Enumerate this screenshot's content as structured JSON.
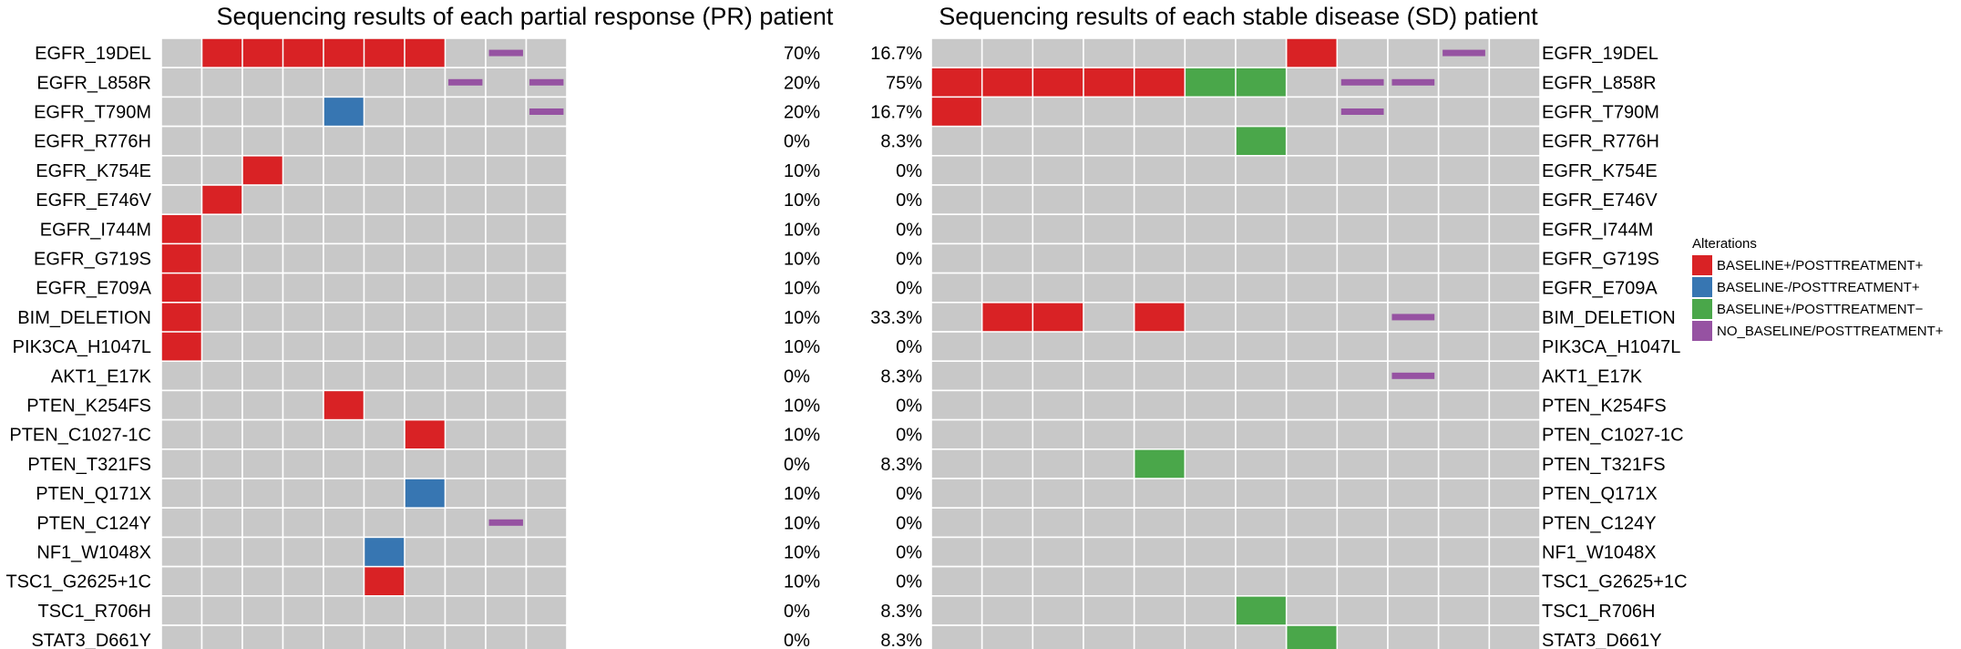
{
  "colors": {
    "background_cell": "#c8c8c8",
    "grid_line": "#ffffff",
    "BASELINE+/POSTTREATMENT+": "#d92225",
    "BASELINE-/POSTTREATMENT+": "#3776b2",
    "BASELINE+/POSTTREATMENT−": "#4aa74a",
    "NO_BASELINE/POSTTREATMENT+": "#9652a2"
  },
  "legend": {
    "title": "Alterations",
    "items": [
      {
        "label": "BASELINE+/POSTTREATMENT+",
        "color": "#d92225"
      },
      {
        "label": "BASELINE-/POSTTREATMENT+",
        "color": "#3776b2"
      },
      {
        "label": "BASELINE+/POSTTREATMENT−",
        "color": "#4aa74a"
      },
      {
        "label": "NO_BASELINE/POSTTREATMENT+",
        "color": "#9652a2"
      }
    ]
  },
  "chart_data": [
    {
      "type": "heatmap",
      "title": "Sequencing results of each partial response (PR) patient",
      "columns": 10,
      "genes": [
        "EGFR_19DEL",
        "EGFR_L858R",
        "EGFR_T790M",
        "EGFR_R776H",
        "EGFR_K754E",
        "EGFR_E746V",
        "EGFR_I744M",
        "EGFR_G719S",
        "EGFR_E709A",
        "BIM_DELETION",
        "PIK3CA_H1047L",
        "AKT1_E17K",
        "PTEN_K254FS",
        "PTEN_C1027-1C",
        "PTEN_T321FS",
        "PTEN_Q171X",
        "PTEN_C124Y",
        "NF1_W1048X",
        "TSC1_G2625+1C",
        "TSC1_R706H",
        "STAT3_D661Y"
      ],
      "percentages": [
        "70%",
        "20%",
        "20%",
        "0%",
        "10%",
        "10%",
        "10%",
        "10%",
        "10%",
        "10%",
        "10%",
        "0%",
        "10%",
        "10%",
        "0%",
        "10%",
        "10%",
        "10%",
        "10%",
        "0%",
        "0%"
      ],
      "cells": [
        {
          "row": 0,
          "col": 1,
          "alteration": "BASELINE+/POSTTREATMENT+"
        },
        {
          "row": 0,
          "col": 2,
          "alteration": "BASELINE+/POSTTREATMENT+"
        },
        {
          "row": 0,
          "col": 3,
          "alteration": "BASELINE+/POSTTREATMENT+"
        },
        {
          "row": 0,
          "col": 4,
          "alteration": "BASELINE+/POSTTREATMENT+"
        },
        {
          "row": 0,
          "col": 5,
          "alteration": "BASELINE+/POSTTREATMENT+"
        },
        {
          "row": 0,
          "col": 6,
          "alteration": "BASELINE+/POSTTREATMENT+"
        },
        {
          "row": 0,
          "col": 8,
          "alteration": "NO_BASELINE/POSTTREATMENT+"
        },
        {
          "row": 1,
          "col": 7,
          "alteration": "NO_BASELINE/POSTTREATMENT+"
        },
        {
          "row": 1,
          "col": 9,
          "alteration": "NO_BASELINE/POSTTREATMENT+"
        },
        {
          "row": 2,
          "col": 4,
          "alteration": "BASELINE-/POSTTREATMENT+"
        },
        {
          "row": 2,
          "col": 9,
          "alteration": "NO_BASELINE/POSTTREATMENT+"
        },
        {
          "row": 4,
          "col": 2,
          "alteration": "BASELINE+/POSTTREATMENT+"
        },
        {
          "row": 5,
          "col": 1,
          "alteration": "BASELINE+/POSTTREATMENT+"
        },
        {
          "row": 6,
          "col": 0,
          "alteration": "BASELINE+/POSTTREATMENT+"
        },
        {
          "row": 7,
          "col": 0,
          "alteration": "BASELINE+/POSTTREATMENT+"
        },
        {
          "row": 8,
          "col": 0,
          "alteration": "BASELINE+/POSTTREATMENT+"
        },
        {
          "row": 9,
          "col": 0,
          "alteration": "BASELINE+/POSTTREATMENT+"
        },
        {
          "row": 10,
          "col": 0,
          "alteration": "BASELINE+/POSTTREATMENT+"
        },
        {
          "row": 12,
          "col": 4,
          "alteration": "BASELINE+/POSTTREATMENT+"
        },
        {
          "row": 13,
          "col": 6,
          "alteration": "BASELINE+/POSTTREATMENT+"
        },
        {
          "row": 15,
          "col": 6,
          "alteration": "BASELINE-/POSTTREATMENT+"
        },
        {
          "row": 16,
          "col": 8,
          "alteration": "NO_BASELINE/POSTTREATMENT+"
        },
        {
          "row": 17,
          "col": 5,
          "alteration": "BASELINE-/POSTTREATMENT+"
        },
        {
          "row": 18,
          "col": 5,
          "alteration": "BASELINE+/POSTTREATMENT+"
        }
      ]
    },
    {
      "type": "heatmap",
      "title": "Sequencing results of each stable disease (SD) patient",
      "columns": 12,
      "genes": [
        "EGFR_19DEL",
        "EGFR_L858R",
        "EGFR_T790M",
        "EGFR_R776H",
        "EGFR_K754E",
        "EGFR_E746V",
        "EGFR_I744M",
        "EGFR_G719S",
        "EGFR_E709A",
        "BIM_DELETION",
        "PIK3CA_H1047L",
        "AKT1_E17K",
        "PTEN_K254FS",
        "PTEN_C1027-1C",
        "PTEN_T321FS",
        "PTEN_Q171X",
        "PTEN_C124Y",
        "NF1_W1048X",
        "TSC1_G2625+1C",
        "TSC1_R706H",
        "STAT3_D661Y"
      ],
      "percentages": [
        "16.7%",
        "75%",
        "16.7%",
        "8.3%",
        "0%",
        "0%",
        "0%",
        "0%",
        "0%",
        "33.3%",
        "0%",
        "8.3%",
        "0%",
        "0%",
        "8.3%",
        "0%",
        "0%",
        "0%",
        "0%",
        "8.3%",
        "8.3%"
      ],
      "cells": [
        {
          "row": 0,
          "col": 7,
          "alteration": "BASELINE+/POSTTREATMENT+"
        },
        {
          "row": 0,
          "col": 10,
          "alteration": "NO_BASELINE/POSTTREATMENT+"
        },
        {
          "row": 1,
          "col": 0,
          "alteration": "BASELINE+/POSTTREATMENT+"
        },
        {
          "row": 1,
          "col": 1,
          "alteration": "BASELINE+/POSTTREATMENT+"
        },
        {
          "row": 1,
          "col": 2,
          "alteration": "BASELINE+/POSTTREATMENT+"
        },
        {
          "row": 1,
          "col": 3,
          "alteration": "BASELINE+/POSTTREATMENT+"
        },
        {
          "row": 1,
          "col": 4,
          "alteration": "BASELINE+/POSTTREATMENT+"
        },
        {
          "row": 1,
          "col": 5,
          "alteration": "BASELINE+/POSTTREATMENT−"
        },
        {
          "row": 1,
          "col": 6,
          "alteration": "BASELINE+/POSTTREATMENT−"
        },
        {
          "row": 1,
          "col": 8,
          "alteration": "NO_BASELINE/POSTTREATMENT+"
        },
        {
          "row": 1,
          "col": 9,
          "alteration": "NO_BASELINE/POSTTREATMENT+"
        },
        {
          "row": 2,
          "col": 0,
          "alteration": "BASELINE+/POSTTREATMENT+"
        },
        {
          "row": 2,
          "col": 8,
          "alteration": "NO_BASELINE/POSTTREATMENT+"
        },
        {
          "row": 3,
          "col": 6,
          "alteration": "BASELINE+/POSTTREATMENT−"
        },
        {
          "row": 9,
          "col": 1,
          "alteration": "BASELINE+/POSTTREATMENT+"
        },
        {
          "row": 9,
          "col": 2,
          "alteration": "BASELINE+/POSTTREATMENT+"
        },
        {
          "row": 9,
          "col": 4,
          "alteration": "BASELINE+/POSTTREATMENT+"
        },
        {
          "row": 9,
          "col": 9,
          "alteration": "NO_BASELINE/POSTTREATMENT+"
        },
        {
          "row": 11,
          "col": 9,
          "alteration": "NO_BASELINE/POSTTREATMENT+"
        },
        {
          "row": 14,
          "col": 4,
          "alteration": "BASELINE+/POSTTREATMENT−"
        },
        {
          "row": 19,
          "col": 6,
          "alteration": "BASELINE+/POSTTREATMENT−"
        },
        {
          "row": 20,
          "col": 7,
          "alteration": "BASELINE+/POSTTREATMENT−"
        }
      ]
    }
  ]
}
